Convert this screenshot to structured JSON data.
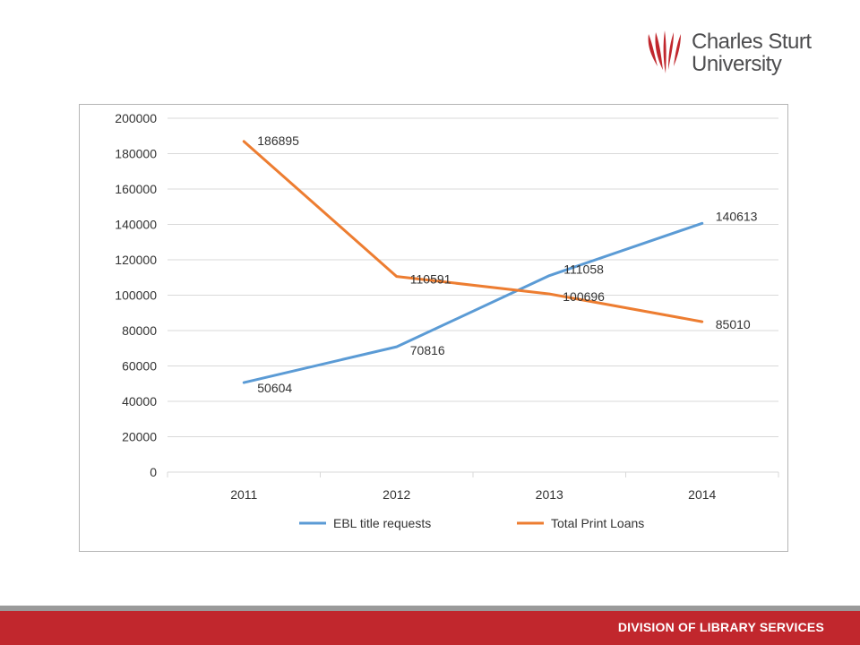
{
  "logo": {
    "line1": "Charles Sturt",
    "line2": "University",
    "color": "#c1272d"
  },
  "footer": {
    "text": "DIVISION OF LIBRARY SERVICES",
    "color": "#c1272d"
  },
  "chart_data": {
    "type": "line",
    "categories": [
      "2011",
      "2012",
      "2013",
      "2014"
    ],
    "series": [
      {
        "name": "EBL title requests",
        "values": [
          50604,
          70816,
          111058,
          140613
        ],
        "color": "#5b9bd5"
      },
      {
        "name": "Total Print Loans",
        "values": [
          186895,
          110591,
          100696,
          85010
        ],
        "color": "#ed7d31"
      }
    ],
    "yticks": [
      "0",
      "20000",
      "40000",
      "60000",
      "80000",
      "100000",
      "120000",
      "140000",
      "160000",
      "180000",
      "200000"
    ],
    "ylim": [
      0,
      200000
    ],
    "grid": true,
    "legend": "bottom",
    "data_labels": true
  }
}
